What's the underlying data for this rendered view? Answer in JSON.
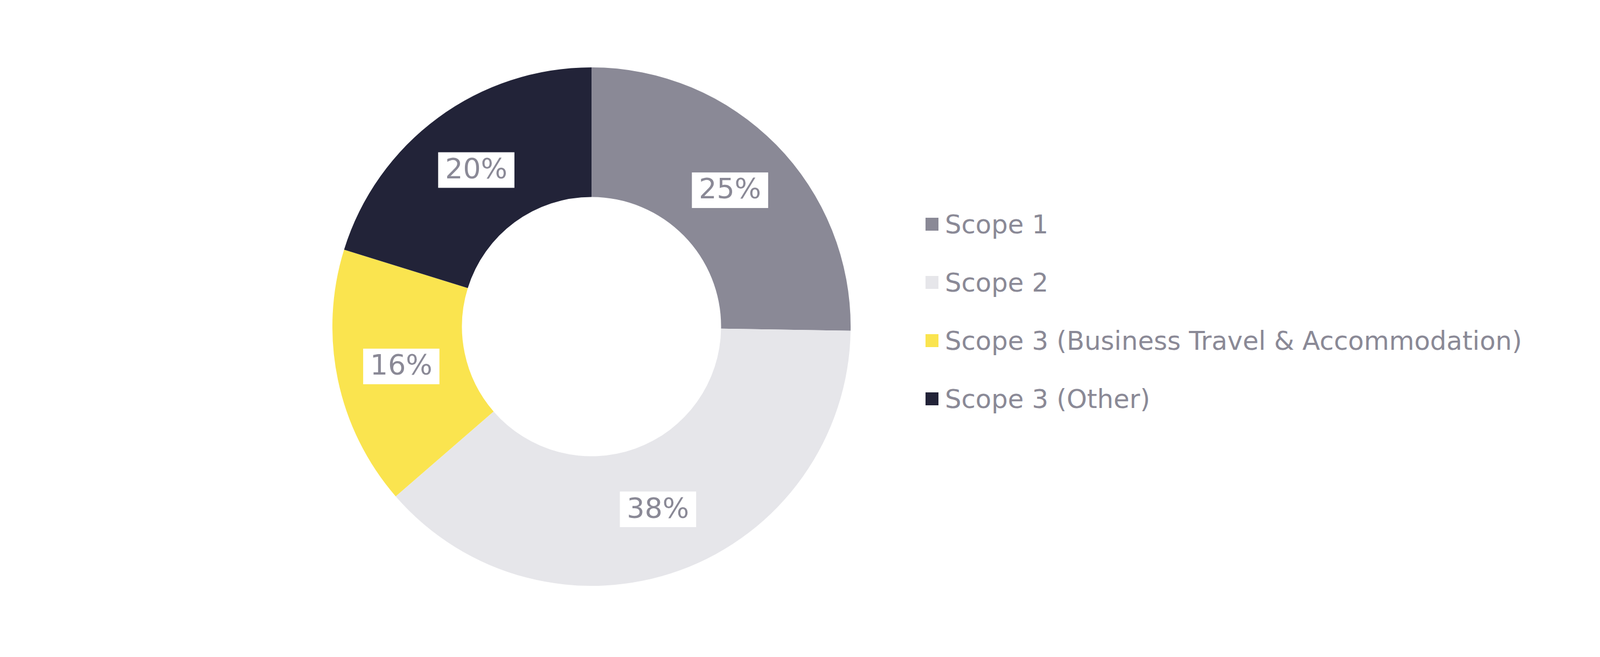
{
  "chart_data": {
    "type": "doughnut",
    "categories": [
      "Scope 1",
      "Scope 2",
      "Scope 3 (Business Travel & Accommodation)",
      "Scope 3 (Other)"
    ],
    "values": [
      25,
      38,
      16,
      20
    ],
    "value_labels": [
      "25%",
      "38%",
      "16%",
      "20%"
    ],
    "colors": [
      "#8a8996",
      "#e6e6ea",
      "#fae44f",
      "#222338"
    ],
    "data_labels": true,
    "legend": "right"
  }
}
